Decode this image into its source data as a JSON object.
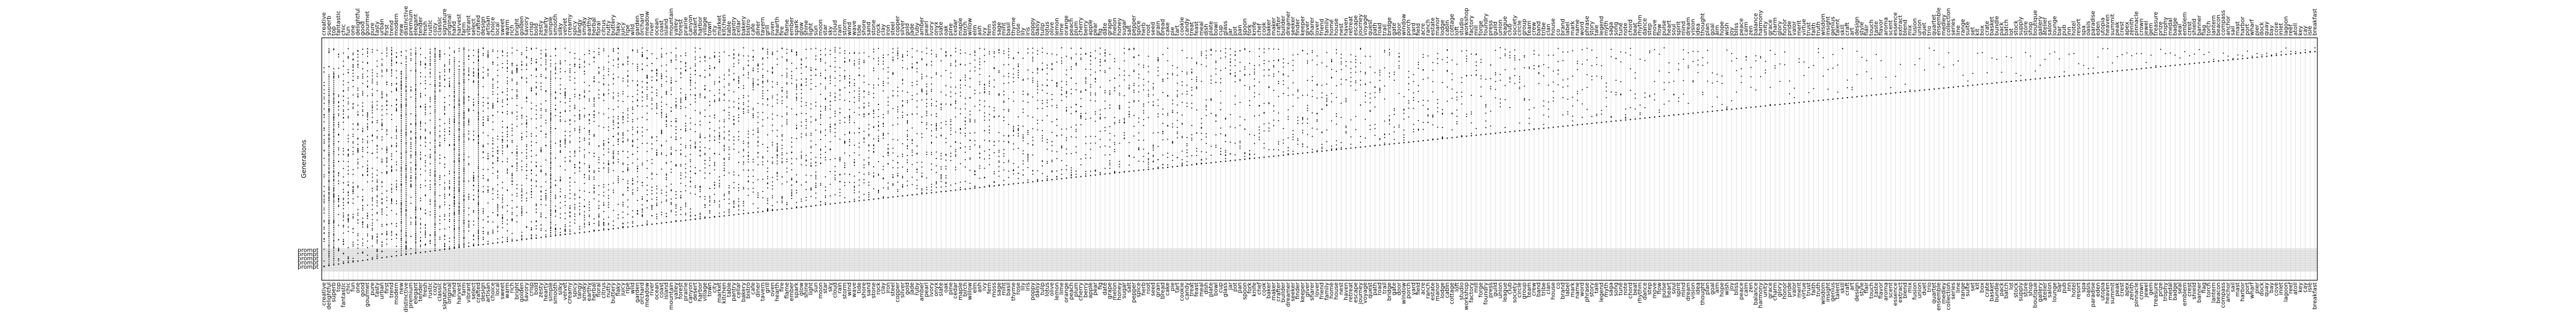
{
  "chart_data": {
    "type": "scatter",
    "ylabel": "Generations",
    "y_tick_labels": [
      "prompt"
    ],
    "grid": true,
    "top_word_labels": [
      "creative",
      "superb",
      "top",
      "fantastic",
      "chic",
      "fun",
      "one",
      "delightful",
      "good",
      "gourmet",
      "pure",
      "tasty",
      "urban",
      "first",
      "trend",
      "modern",
      "new",
      "distinctive",
      "premium",
      "elegant",
      "tender",
      "fresh",
      "rustic",
      "cozy",
      "classic",
      "signature",
      "original",
      "hand",
      "harvest",
      "farm",
      "vibrant",
      "select",
      "crafted",
      "design",
      "artisan",
      "choice",
      "local",
      "sweet",
      "warm",
      "rich",
      "bright",
      "golden",
      "savory",
      "crisp",
      "bold",
      "zesty",
      "hearty",
      "simple",
      "smooth",
      "silky",
      "velvet",
      "creamy",
      "spicy",
      "tangy",
      "smoky",
      "earthy",
      "herbal",
      "floral",
      "citrus",
      "nutty",
      "buttery",
      "flaky",
      "juicy",
      "ripe",
      "wild",
      "garden",
      "orchard",
      "meadow",
      "river",
      "ocean",
      "coast",
      "island",
      "mountain",
      "valley",
      "forest",
      "prairie",
      "canyon",
      "desert",
      "harbor",
      "village",
      "town",
      "city",
      "market",
      "kitchen",
      "table",
      "pantry",
      "cellar",
      "bakery",
      "bistro",
      "cafe",
      "diner",
      "tavern",
      "grill",
      "oven",
      "hearth",
      "fire",
      "flame",
      "ember",
      "spark",
      "glow",
      "shine",
      "light",
      "sun",
      "moon",
      "star",
      "sky",
      "cloud",
      "rain",
      "storm",
      "wind",
      "wave",
      "tide",
      "shore",
      "sand",
      "stone",
      "rock",
      "clay",
      "iron",
      "steel",
      "copper",
      "silver",
      "gold",
      "jade",
      "ruby",
      "amber",
      "pearl",
      "ivory",
      "onyx",
      "slate",
      "oak",
      "pine",
      "cedar",
      "maple",
      "birch",
      "willow",
      "elm",
      "ash",
      "ivy",
      "fern",
      "moss",
      "sage",
      "mint",
      "basil",
      "thyme",
      "rose",
      "lily",
      "iris",
      "poppy",
      "daisy",
      "tulip",
      "lotus",
      "olive",
      "lemon",
      "lime",
      "orange",
      "peach",
      "plum",
      "cherry",
      "berry",
      "apple",
      "pear",
      "fig",
      "date",
      "grape",
      "melon",
      "honey",
      "sugar",
      "salt",
      "pepper",
      "spice",
      "herb",
      "root",
      "seed",
      "grain",
      "bread",
      "cake",
      "pie",
      "tart",
      "cookie",
      "candy",
      "treat",
      "feast",
      "meal",
      "dish",
      "plate",
      "bowl",
      "cup",
      "glass",
      "jar",
      "pot",
      "pan",
      "spoon",
      "fork",
      "knife",
      "chef",
      "cook",
      "baker",
      "maker",
      "crafter",
      "builder",
      "dreamer",
      "seeker",
      "finder",
      "keeper",
      "giver",
      "sharer",
      "lover",
      "friend",
      "family",
      "home",
      "house",
      "nest",
      "haven",
      "retreat",
      "escape",
      "journey",
      "voyage",
      "quest",
      "path",
      "road",
      "trail",
      "bridge",
      "gate",
      "door",
      "window",
      "porch",
      "yard",
      "field",
      "acre",
      "ranch",
      "estate",
      "manor",
      "lodge",
      "cabin",
      "cottage",
      "loft",
      "studio",
      "workshop",
      "factory",
      "mill",
      "forge",
      "foundry",
      "press",
      "guild",
      "union",
      "league",
      "club",
      "society",
      "circle",
      "group",
      "team",
      "crew",
      "band",
      "tribe",
      "clan",
      "house",
      "co",
      "brand",
      "label",
      "mark",
      "name",
      "word",
      "phrase",
      "story",
      "tale",
      "legend",
      "myth",
      "saga",
      "song",
      "tune",
      "note",
      "chord",
      "beat",
      "rhythm",
      "dance",
      "step",
      "move",
      "flow",
      "pulse",
      "heart",
      "soul",
      "spirit",
      "mind",
      "dream",
      "vision",
      "idea",
      "thought",
      "plan",
      "goal",
      "aim",
      "hope",
      "wish",
      "joy",
      "bliss",
      "peace",
      "calm",
      "zen",
      "balance",
      "harmony",
      "unity",
      "grace",
      "charm",
      "glory",
      "honor",
      "pride",
      "valor",
      "merit",
      "virtue",
      "trust",
      "faith",
      "truth",
      "wisdom",
      "insight",
      "genius",
      "talent",
      "skill",
      "craft",
      "art",
      "design",
      "style",
      "flair",
      "touch",
      "taste",
      "flavor",
      "aroma",
      "scent",
      "essence",
      "extract",
      "blend",
      "mix",
      "fusion",
      "union",
      "duet",
      "trio",
      "quartet",
      "ensemble",
      "medley",
      "collection",
      "series",
      "line",
      "range",
      "suite",
      "set",
      "kit",
      "box",
      "crate",
      "basket",
      "bundle",
      "pack",
      "batch",
      "lot",
      "stock",
      "supply",
      "store",
      "shop",
      "boutique",
      "gallery",
      "atelier",
      "salon",
      "lounge",
      "bar",
      "pub",
      "inn",
      "hotel",
      "resort",
      "spa",
      "oasis",
      "paradise",
      "eden",
      "utopia",
      "heaven",
      "summit",
      "peak",
      "crest",
      "apex",
      "zenith",
      "pinnacle",
      "crown",
      "jewel",
      "gem",
      "treasure",
      "prize",
      "trophy",
      "medal",
      "badge",
      "seal",
      "emblem",
      "crest",
      "shield",
      "banner",
      "flag",
      "torch",
      "lantern",
      "beacon",
      "compass",
      "anchor",
      "sail",
      "mast",
      "harbor",
      "port",
      "wharf",
      "pier",
      "dock",
      "quay",
      "bay",
      "cove",
      "inlet",
      "lagoon",
      "reef",
      "atoll",
      "key",
      "cay",
      "isle",
      "breakfast"
    ],
    "bottom_word_labels": [
      "creative",
      "delightful",
      "superb",
      "top",
      "fantastic",
      "chic",
      "fun",
      "one",
      "good",
      "gourmet",
      "pure",
      "tasty",
      "urban",
      "first",
      "trend",
      "modern",
      "new",
      "distinctive",
      "premium",
      "elegant",
      "tender",
      "fresh",
      "rustic",
      "cozy",
      "classic",
      "signature",
      "original",
      "hand",
      "harvest",
      "farm",
      "vibrant",
      "select",
      "crafted",
      "design",
      "artisan",
      "choice",
      "local",
      "sweet",
      "warm",
      "rich",
      "bright",
      "golden",
      "savory",
      "crisp",
      "bold",
      "zesty",
      "hearty",
      "simple",
      "smooth",
      "silky",
      "velvet",
      "creamy",
      "spicy",
      "tangy",
      "smoky",
      "earthy",
      "herbal",
      "floral",
      "citrus",
      "nutty",
      "buttery",
      "flaky",
      "juicy",
      "ripe",
      "wild",
      "garden",
      "orchard",
      "meadow",
      "river",
      "ocean",
      "coast",
      "island",
      "mountain",
      "valley",
      "forest",
      "prairie",
      "canyon",
      "desert",
      "harbor",
      "village",
      "town",
      "city",
      "market",
      "kitchen",
      "table",
      "pantry",
      "cellar",
      "bakery",
      "bistro",
      "cafe",
      "diner",
      "tavern",
      "grill",
      "oven",
      "hearth",
      "fire",
      "flame",
      "ember",
      "spark",
      "glow",
      "shine",
      "light",
      "sun",
      "moon",
      "star",
      "sky",
      "cloud",
      "rain",
      "storm",
      "wind",
      "wave",
      "tide",
      "shore",
      "sand",
      "stone",
      "rock",
      "clay",
      "iron",
      "steel",
      "copper",
      "silver",
      "gold",
      "jade",
      "ruby",
      "amber",
      "pearl",
      "ivory",
      "onyx",
      "slate",
      "oak",
      "pine",
      "cedar",
      "maple",
      "birch",
      "willow",
      "elm",
      "ash",
      "ivy",
      "fern",
      "moss",
      "sage",
      "mint",
      "basil",
      "thyme",
      "rose",
      "lily",
      "iris",
      "poppy",
      "daisy",
      "tulip",
      "lotus",
      "olive",
      "lemon",
      "lime",
      "orange",
      "peach",
      "plum",
      "cherry",
      "berry",
      "apple",
      "pear",
      "fig",
      "date",
      "grape",
      "melon",
      "honey",
      "sugar",
      "salt",
      "pepper",
      "spice",
      "herb",
      "root",
      "seed",
      "grain",
      "bread",
      "cake",
      "pie",
      "tart",
      "cookie",
      "candy",
      "treat",
      "feast",
      "meal",
      "dish",
      "plate",
      "bowl",
      "cup",
      "glass",
      "jar",
      "pot",
      "pan",
      "spoon",
      "fork",
      "knife",
      "chef",
      "cook",
      "baker",
      "maker",
      "crafter",
      "builder",
      "dreamer",
      "seeker",
      "finder",
      "keeper",
      "giver",
      "sharer",
      "lover",
      "friend",
      "family",
      "home",
      "house",
      "nest",
      "haven",
      "retreat",
      "escape",
      "journey",
      "voyage",
      "quest",
      "path",
      "road",
      "trail",
      "bridge",
      "gate",
      "door",
      "window",
      "porch",
      "yard",
      "field",
      "acre",
      "ranch",
      "estate",
      "manor",
      "lodge",
      "cabin",
      "cottage",
      "loft",
      "studio",
      "workshop",
      "factory",
      "mill",
      "forge",
      "foundry",
      "press",
      "guild",
      "union",
      "league",
      "club",
      "society",
      "circle",
      "group",
      "team",
      "crew",
      "band",
      "tribe",
      "clan",
      "house",
      "co",
      "brand",
      "label",
      "mark",
      "name",
      "word",
      "phrase",
      "story",
      "tale",
      "legend",
      "myth",
      "saga",
      "song",
      "tune",
      "note",
      "chord",
      "beat",
      "rhythm",
      "dance",
      "step",
      "move",
      "flow",
      "pulse",
      "heart",
      "soul",
      "spirit",
      "mind",
      "dream",
      "vision",
      "idea",
      "thought",
      "plan",
      "goal",
      "aim",
      "hope",
      "wish",
      "joy",
      "bliss",
      "peace",
      "calm",
      "zen",
      "balance",
      "harmony",
      "unity",
      "grace",
      "charm",
      "glory",
      "honor",
      "pride",
      "valor",
      "merit",
      "virtue",
      "trust",
      "faith",
      "truth",
      "wisdom",
      "insight",
      "genius",
      "talent",
      "skill",
      "craft",
      "art",
      "design",
      "style",
      "flair",
      "touch",
      "taste",
      "flavor",
      "aroma",
      "scent",
      "essence",
      "extract",
      "blend",
      "mix",
      "fusion",
      "union",
      "duet",
      "trio",
      "quartet",
      "ensemble",
      "medley",
      "collection",
      "series",
      "line",
      "range",
      "suite",
      "set",
      "kit",
      "box",
      "crate",
      "basket",
      "bundle",
      "pack",
      "batch",
      "lot",
      "stock",
      "supply",
      "store",
      "shop",
      "boutique",
      "gallery",
      "atelier",
      "salon",
      "lounge",
      "bar",
      "pub",
      "inn",
      "hotel",
      "resort",
      "spa",
      "oasis",
      "paradise",
      "eden",
      "utopia",
      "heaven",
      "summit",
      "peak",
      "crest",
      "apex",
      "zenith",
      "pinnacle",
      "crown",
      "jewel",
      "gem",
      "treasure",
      "prize",
      "trophy",
      "medal",
      "badge",
      "seal",
      "emblem",
      "crest",
      "shield",
      "banner",
      "flag",
      "torch",
      "lantern",
      "beacon",
      "compass",
      "anchor",
      "sail",
      "mast",
      "harbor",
      "port",
      "wharf",
      "pier",
      "dock",
      "quay",
      "bay",
      "cove",
      "inlet",
      "lagoon",
      "reef",
      "atoll",
      "key",
      "cay",
      "isle",
      "breakfast"
    ],
    "point_color": "#000000",
    "grid_color": "#c8c8c8",
    "band_color": "#d9d9d9"
  }
}
